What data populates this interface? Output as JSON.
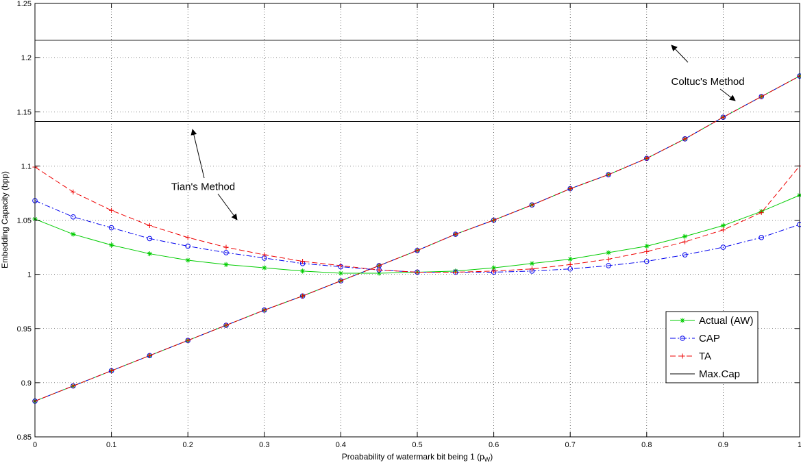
{
  "chart_data": {
    "type": "line",
    "title": "",
    "xlabel": "Proabability of watermark bit being 1 (p",
    "xlabel_subscript": "W",
    "xlabel_suffix": ")",
    "ylabel": "Embedding Capacity (bpp)",
    "xlim": [
      0,
      1
    ],
    "ylim": [
      0.85,
      1.25
    ],
    "grid": true,
    "xticks": [
      0,
      0.1,
      0.2,
      0.3,
      0.4,
      0.5,
      0.6,
      0.7,
      0.8,
      0.9,
      1
    ],
    "xtick_labels": [
      "0",
      "0.1",
      "0.2",
      "0.3",
      "0.4",
      "0.5",
      "0.6",
      "0.7",
      "0.8",
      "0.9",
      "1"
    ],
    "yticks": [
      0.85,
      0.9,
      0.95,
      1,
      1.05,
      1.1,
      1.15,
      1.2,
      1.25
    ],
    "ytick_labels": [
      "0.85",
      "0.9",
      "0.95",
      "1",
      "1.05",
      "1.1",
      "1.15",
      "1.2",
      "1.25"
    ],
    "x": [
      0,
      0.05,
      0.1,
      0.15,
      0.2,
      0.25,
      0.3,
      0.35,
      0.4,
      0.45,
      0.5,
      0.55,
      0.6,
      0.65,
      0.7,
      0.75,
      0.8,
      0.85,
      0.9,
      0.95,
      1
    ],
    "series": [
      {
        "name": "Actual (AW)",
        "color": "#00cc00",
        "marker": "star",
        "dash": "solid",
        "values": [
          1.051,
          1.037,
          1.027,
          1.019,
          1.013,
          1.009,
          1.006,
          1.003,
          1.001,
          1.001,
          1.002,
          1.003,
          1.006,
          1.01,
          1.014,
          1.02,
          1.026,
          1.035,
          1.045,
          1.058,
          1.073
        ]
      },
      {
        "name": "CAP",
        "color": "#0000ee",
        "marker": "circle",
        "dash": "dashdot",
        "values": [
          1.068,
          1.053,
          1.043,
          1.033,
          1.026,
          1.02,
          1.015,
          1.01,
          1.007,
          1.004,
          1.002,
          1.002,
          1.002,
          1.003,
          1.005,
          1.008,
          1.012,
          1.018,
          1.025,
          1.034,
          1.046
        ]
      },
      {
        "name": "TA",
        "color": "#ee0000",
        "marker": "plus",
        "dash": "dashed",
        "values": [
          1.099,
          1.076,
          1.059,
          1.045,
          1.034,
          1.025,
          1.018,
          1.012,
          1.008,
          1.004,
          1.002,
          1.002,
          1.003,
          1.005,
          1.009,
          1.014,
          1.021,
          1.03,
          1.041,
          1.057,
          1.1
        ]
      }
    ],
    "rising_series": {
      "values": [
        0.883,
        0.897,
        0.911,
        0.925,
        0.939,
        0.953,
        0.967,
        0.98,
        0.994,
        1.008,
        1.022,
        1.037,
        1.05,
        1.064,
        1.079,
        1.092,
        1.107,
        1.125,
        1.145,
        1.164,
        1.183
      ]
    },
    "max_cap_lines": [
      1.141,
      1.216
    ],
    "max_cap_name": "Max.Cap",
    "max_cap_color": "#000000",
    "legend_position": "bottom-right",
    "annotations": [
      {
        "text": "Tian's Method",
        "x": 0.22,
        "y": 1.081
      },
      {
        "text": "Coltuc's Method",
        "x": 0.88,
        "y": 1.178
      }
    ]
  }
}
